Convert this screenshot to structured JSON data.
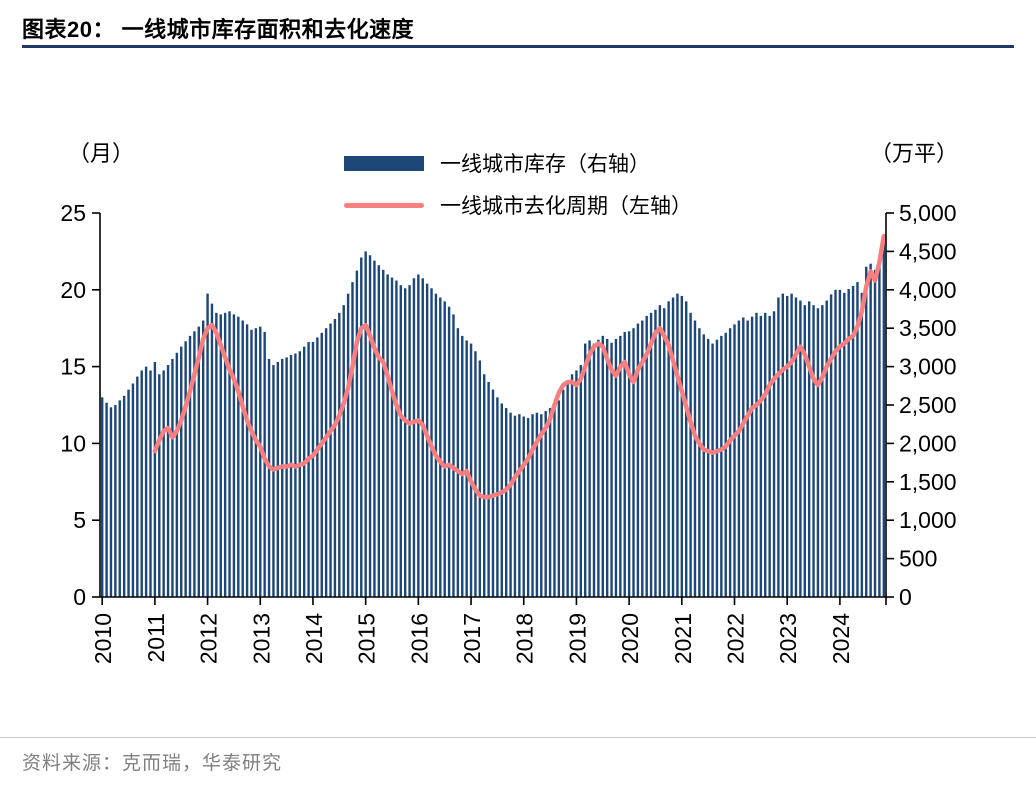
{
  "header": {
    "title": "图表20：  一线城市库存面积和去化速度"
  },
  "footer": {
    "source": "资料来源：克而瑞，华泰研究"
  },
  "colors": {
    "bar": "#1d4776",
    "line": "#f87f7f",
    "title_rule": "#1f3864"
  },
  "chart_data": {
    "type": "bar",
    "subtype": "monthly bars (right axis) with line overlay (left axis)",
    "title": "一线城市库存面积和去化速度",
    "start_year": 2010,
    "x_tick_years": [
      "2010",
      "2011",
      "2012",
      "2013",
      "2014",
      "2015",
      "2016",
      "2017",
      "2018",
      "2019",
      "2020",
      "2021",
      "2022",
      "2023",
      "2024"
    ],
    "left_axis": {
      "label": "（月）",
      "min": 0,
      "max": 25,
      "ticks": [
        0,
        5,
        10,
        15,
        20,
        25
      ]
    },
    "right_axis": {
      "label": "（万平）",
      "min": 0,
      "max": 5000,
      "ticks": [
        0,
        500,
        1000,
        1500,
        2000,
        2500,
        3000,
        3500,
        4000,
        4500,
        5000
      ]
    },
    "legend_position": "top-center",
    "grid": false,
    "series": [
      {
        "name": "一线城市库存（右轴）",
        "type": "bar",
        "axis": "right",
        "unit": "万平",
        "color": "#1d4776",
        "start_index": 0,
        "values": [
          2600,
          2530,
          2470,
          2500,
          2560,
          2620,
          2700,
          2780,
          2870,
          2950,
          3000,
          2950,
          3060,
          2900,
          2950,
          3020,
          3100,
          3180,
          3260,
          3330,
          3400,
          3460,
          3520,
          3600,
          3950,
          3820,
          3700,
          3680,
          3700,
          3720,
          3680,
          3650,
          3600,
          3550,
          3480,
          3500,
          3520,
          3450,
          3100,
          3020,
          3060,
          3100,
          3120,
          3150,
          3170,
          3200,
          3260,
          3320,
          3320,
          3380,
          3440,
          3500,
          3560,
          3620,
          3700,
          3800,
          3950,
          4100,
          4250,
          4420,
          4500,
          4450,
          4380,
          4320,
          4260,
          4200,
          4160,
          4120,
          4060,
          4020,
          4060,
          4150,
          4200,
          4150,
          4080,
          4020,
          3950,
          3900,
          3850,
          3780,
          3680,
          3500,
          3400,
          3340,
          3300,
          3200,
          3080,
          2900,
          2800,
          2700,
          2600,
          2520,
          2460,
          2400,
          2360,
          2380,
          2350,
          2330,
          2380,
          2400,
          2380,
          2420,
          2460,
          2500,
          2560,
          2700,
          2800,
          2900,
          2950,
          3020,
          3300,
          3340,
          3300,
          3350,
          3400,
          3360,
          3310,
          3360,
          3400,
          3450,
          3460,
          3500,
          3560,
          3600,
          3660,
          3700,
          3740,
          3800,
          3760,
          3850,
          3900,
          3950,
          3920,
          3850,
          3700,
          3600,
          3500,
          3420,
          3360,
          3300,
          3350,
          3400,
          3440,
          3500,
          3550,
          3600,
          3640,
          3600,
          3650,
          3700,
          3660,
          3700,
          3660,
          3720,
          3900,
          3950,
          3920,
          3950,
          3900,
          3860,
          3800,
          3850,
          3800,
          3760,
          3800,
          3860,
          3940,
          4000,
          4000,
          3960,
          4010,
          4050,
          4100,
          3960,
          4300,
          4340,
          4260,
          4400,
          4620
        ]
      },
      {
        "name": "一线城市去化周期（左轴）",
        "type": "line",
        "axis": "left",
        "unit": "月",
        "color": "#f87f7f",
        "start_index": 12,
        "values": [
          9.5,
          10.2,
          10.8,
          11.0,
          10.4,
          10.8,
          11.5,
          12.4,
          13.4,
          14.5,
          15.6,
          16.8,
          17.5,
          17.7,
          17.2,
          16.4,
          15.6,
          14.8,
          14.2,
          13.4,
          12.4,
          11.5,
          10.8,
          10.2,
          9.8,
          9.0,
          8.5,
          8.3,
          8.4,
          8.5,
          8.5,
          8.6,
          8.5,
          8.6,
          8.7,
          9.0,
          9.2,
          9.6,
          10.0,
          10.4,
          10.8,
          11.2,
          11.8,
          12.6,
          13.6,
          15.0,
          16.6,
          17.5,
          17.7,
          17.0,
          16.2,
          15.6,
          15.3,
          14.4,
          13.4,
          12.5,
          11.8,
          11.5,
          11.3,
          11.4,
          11.5,
          11.2,
          10.5,
          9.8,
          9.2,
          8.8,
          8.5,
          8.6,
          8.4,
          8.2,
          8.0,
          8.2,
          7.5,
          7.0,
          6.6,
          6.5,
          6.5,
          6.6,
          6.7,
          6.8,
          7.0,
          7.3,
          7.8,
          8.2,
          8.6,
          9.0,
          9.6,
          10.1,
          10.6,
          11.0,
          11.6,
          12.5,
          13.3,
          13.8,
          14.0,
          14.0,
          13.8,
          14.2,
          15.0,
          15.8,
          16.3,
          16.5,
          16.3,
          15.5,
          14.8,
          14.4,
          15.0,
          15.3,
          14.5,
          14.0,
          14.8,
          15.3,
          15.8,
          16.5,
          17.2,
          17.5,
          17.0,
          16.4,
          15.4,
          14.4,
          13.4,
          12.4,
          11.4,
          10.5,
          10.0,
          9.6,
          9.5,
          9.4,
          9.5,
          9.6,
          9.8,
          10.2,
          10.5,
          10.8,
          11.3,
          11.8,
          12.3,
          12.5,
          12.8,
          13.2,
          13.8,
          14.2,
          14.5,
          14.8,
          15.0,
          15.3,
          15.8,
          16.3,
          15.8,
          15.0,
          14.2,
          13.8,
          14.3,
          15.0,
          15.5,
          16.0,
          16.3,
          16.5,
          16.8,
          17.0,
          17.6,
          18.6,
          20.2,
          21.2,
          20.6,
          21.8,
          23.5
        ]
      }
    ]
  }
}
